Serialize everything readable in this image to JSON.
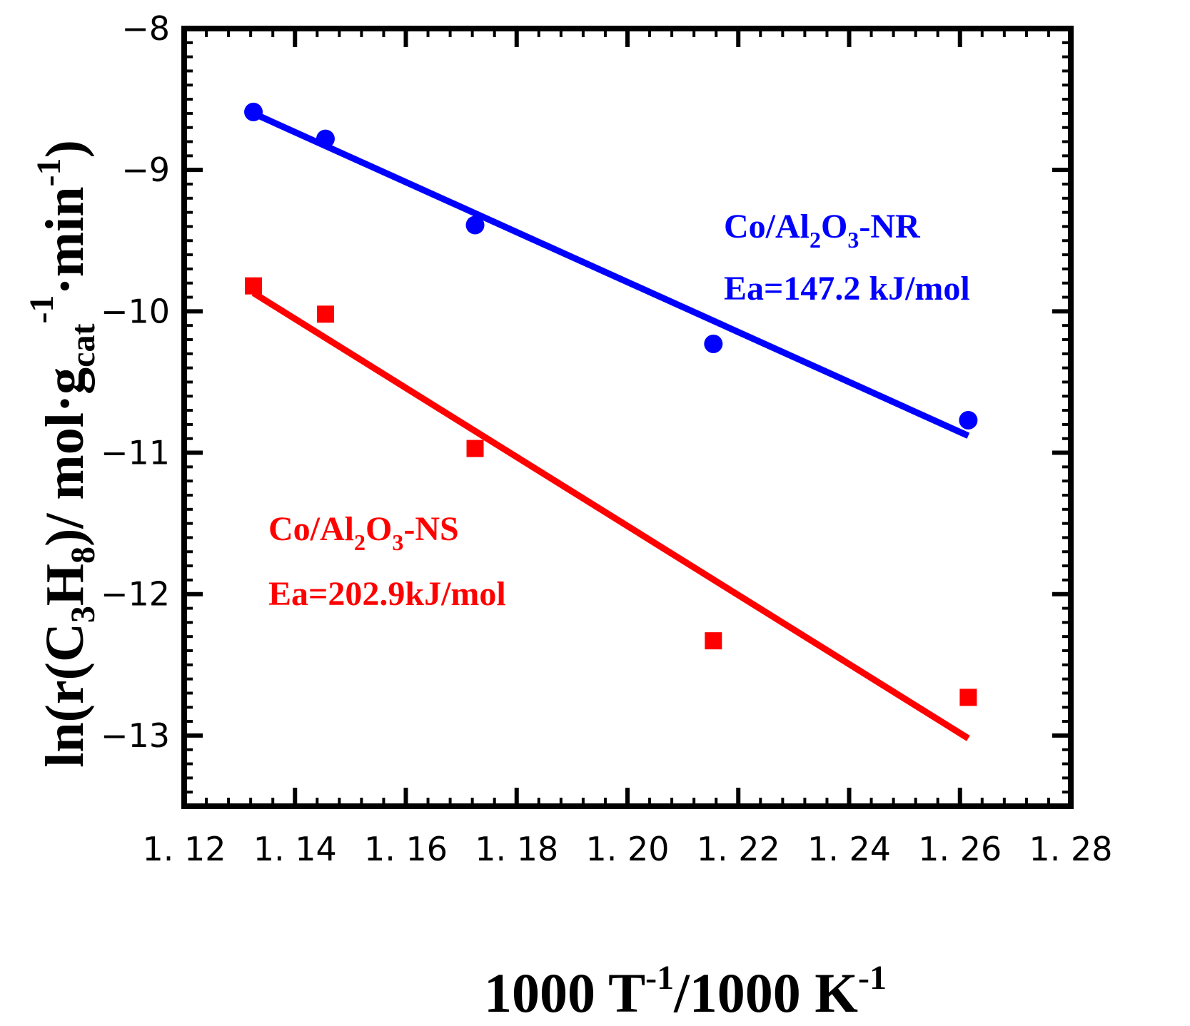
{
  "chart_data": {
    "type": "scatter",
    "title": "",
    "xlabel": {
      "main": "1000 T",
      "sup1": "-1",
      "mid": "/1000 K",
      "sup2": "-1"
    },
    "ylabel": {
      "p1": "ln(r(C",
      "sub1": "3",
      "p2": "H",
      "sub2": "8",
      "p3": ")/ mol·g",
      "sub3": "cat",
      "sup3": "-1",
      "p4": "·min",
      "sup4": "-1",
      "p5": ")"
    },
    "xlim": [
      1.12,
      1.28
    ],
    "ylim": [
      -13.5,
      -8.0
    ],
    "x_ticks": [
      1.12,
      1.14,
      1.16,
      1.18,
      1.2,
      1.22,
      1.24,
      1.26,
      1.28
    ],
    "x_tick_labels": [
      "1. 12",
      "1. 14",
      "1. 16",
      "1. 18",
      "1. 20",
      "1. 22",
      "1. 24",
      "1. 26",
      "1. 28"
    ],
    "y_ticks": [
      -8,
      -9,
      -10,
      -11,
      -12,
      -13
    ],
    "y_tick_labels": [
      "−8",
      "−9",
      "−10",
      "−11",
      "−12",
      "−13"
    ],
    "series": [
      {
        "name": "Co/Al2O3-NR",
        "color": "#0000ff",
        "marker": "circle",
        "x": [
          1.1325,
          1.1455,
          1.1725,
          1.2155,
          1.2615
        ],
        "y": [
          -8.59,
          -8.78,
          -9.39,
          -10.23,
          -10.77
        ],
        "fit": {
          "x": [
            1.1325,
            1.2615
          ],
          "y": [
            -8.6,
            -10.88
          ]
        },
        "annotation": {
          "name_pre": "Co/Al",
          "name_sub1": "2",
          "name_mid": "O",
          "name_sub2": "3",
          "name_post": "-NR",
          "ea": "Ea=147.2 kJ/mol"
        }
      },
      {
        "name": "Co/Al2O3-NS",
        "color": "#ff0000",
        "marker": "square",
        "x": [
          1.1325,
          1.1455,
          1.1725,
          1.2155,
          1.2615
        ],
        "y": [
          -9.82,
          -10.02,
          -10.97,
          -12.33,
          -12.73
        ],
        "fit": {
          "x": [
            1.1325,
            1.2615
          ],
          "y": [
            -9.87,
            -13.02
          ]
        },
        "annotation": {
          "name_pre": "Co/Al",
          "name_sub1": "2",
          "name_mid": "O",
          "name_sub2": "3",
          "name_post": "-NS",
          "ea": "Ea=202.9kJ/mol"
        }
      }
    ]
  }
}
